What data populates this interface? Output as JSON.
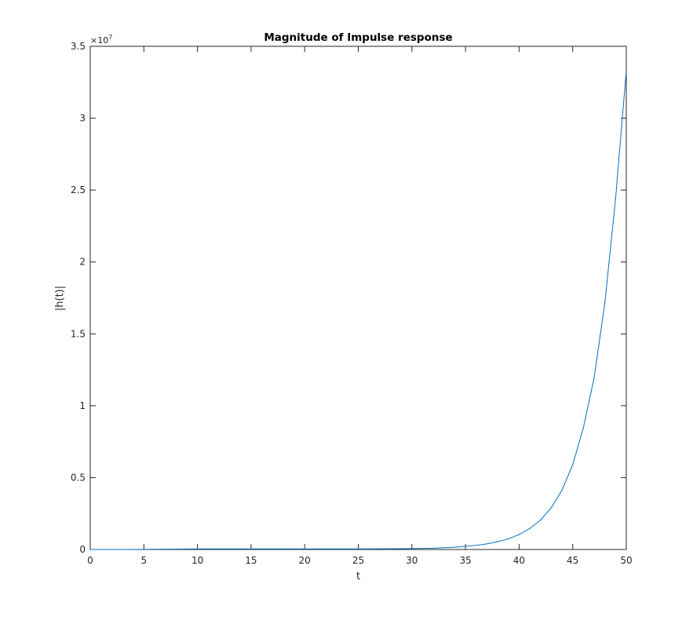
{
  "chart_data": {
    "type": "line",
    "title": "Magnitude of Impulse response",
    "xlabel": "t",
    "ylabel": "|h(t)|",
    "xlim": [
      0,
      50
    ],
    "ylim": [
      0,
      35000000
    ],
    "xticks": [
      0,
      5,
      10,
      15,
      20,
      25,
      30,
      35,
      40,
      45,
      50
    ],
    "xtick_labels": [
      "0",
      "5",
      "10",
      "15",
      "20",
      "25",
      "30",
      "35",
      "40",
      "45",
      "50"
    ],
    "yticks": [
      0,
      5000000,
      10000000,
      15000000,
      20000000,
      25000000,
      30000000,
      35000000
    ],
    "ytick_labels": [
      "0",
      "0.5",
      "1",
      "1.5",
      "2",
      "2.5",
      "3",
      "3.5"
    ],
    "y_exponent_base": "×10",
    "y_exponent_power": "7",
    "grid": false,
    "line_color": "#0072bd",
    "series": [
      {
        "x": [
          0,
          3.5,
          10,
          15,
          20,
          25,
          30,
          32,
          34,
          35,
          36,
          37,
          38,
          39,
          40,
          41,
          42,
          43,
          44,
          45,
          46,
          47,
          48,
          49,
          50
        ],
        "y": [
          0,
          0,
          40000,
          40000,
          40000,
          40000,
          60000,
          90000,
          160000,
          220000,
          290000,
          390000,
          540000,
          740000,
          1040000,
          1460000,
          2050000,
          2900000,
          4130000,
          5900000,
          8470000,
          11950000,
          17150000,
          24400000,
          33300000
        ]
      }
    ]
  }
}
